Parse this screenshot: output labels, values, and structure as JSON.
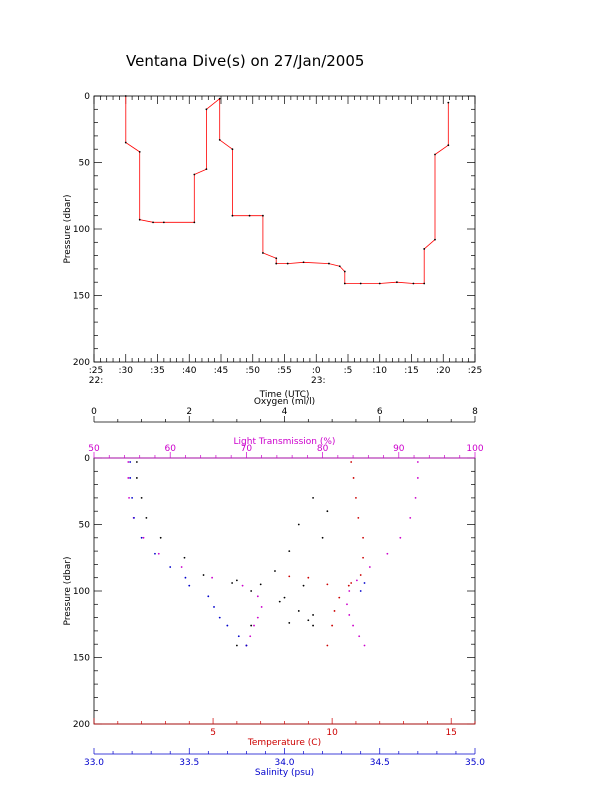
{
  "title": "Ventana Dive(s) on 27/Jan/2005",
  "chart_data": [
    {
      "type": "line",
      "xlabel": "Time (UTC)",
      "ylabel": "Pressure (dbar)",
      "x_range_minutes": [
        25,
        85
      ],
      "ylim": [
        200,
        0
      ],
      "x_ticks": [
        {
          "min": 25,
          "label": ":25",
          "hour": "22:"
        },
        {
          "min": 30,
          "label": ":30"
        },
        {
          "min": 35,
          "label": ":35"
        },
        {
          "min": 40,
          "label": ":40"
        },
        {
          "min": 45,
          "label": ":45"
        },
        {
          "min": 50,
          "label": ":50"
        },
        {
          "min": 55,
          "label": ":55"
        },
        {
          "min": 60,
          "label": ":0",
          "hour": "23:"
        },
        {
          "min": 65,
          "label": ":5"
        },
        {
          "min": 70,
          "label": ":10"
        },
        {
          "min": 75,
          "label": ":15"
        },
        {
          "min": 80,
          "label": ":20"
        },
        {
          "min": 85,
          "label": ":25"
        }
      ],
      "y_ticks": [
        0,
        50,
        100,
        150,
        200
      ],
      "series": [
        {
          "color": "#ff0000",
          "points": [
            [
              30.0,
              0
            ],
            [
              30.0,
              35
            ],
            [
              32.2,
              42
            ],
            [
              32.2,
              93
            ],
            [
              34.3,
              95
            ],
            [
              36.0,
              95
            ],
            [
              40.8,
              95
            ],
            [
              40.8,
              59
            ],
            [
              42.7,
              55
            ],
            [
              42.7,
              10
            ],
            [
              44.8,
              2
            ],
            [
              44.8,
              33
            ],
            [
              46.8,
              40
            ],
            [
              46.8,
              90
            ],
            [
              49.5,
              90
            ],
            [
              51.6,
              90
            ],
            [
              51.6,
              118
            ],
            [
              53.7,
              122
            ],
            [
              53.7,
              126
            ],
            [
              55.5,
              126
            ],
            [
              58.0,
              125
            ],
            [
              62.0,
              126
            ],
            [
              63.7,
              128
            ],
            [
              64.5,
              132
            ],
            [
              64.5,
              141
            ],
            [
              67.0,
              141
            ],
            [
              70.0,
              141
            ],
            [
              72.7,
              140
            ],
            [
              75.3,
              141
            ],
            [
              77.0,
              141
            ],
            [
              77.0,
              115
            ],
            [
              78.7,
              108
            ],
            [
              78.7,
              44
            ],
            [
              80.8,
              37
            ],
            [
              80.8,
              5
            ]
          ]
        }
      ]
    },
    {
      "type": "scatter",
      "ylabel": "Pressure (dbar)",
      "ylim": [
        200,
        0
      ],
      "y_ticks": [
        0,
        50,
        100,
        150,
        200
      ],
      "axes": {
        "oxygen": {
          "label": "Oxygen (ml/l)",
          "range": [
            0,
            8
          ],
          "ticks": [
            0,
            2,
            4,
            6,
            8
          ],
          "color": "#000000"
        },
        "light_transmission": {
          "label": "Light Transmission (%)",
          "range": [
            50,
            100
          ],
          "ticks": [
            50,
            60,
            70,
            80,
            90,
            100
          ],
          "color": "#cc00cc"
        },
        "temperature": {
          "label": "Temperature (C)",
          "range": [
            0,
            16
          ],
          "ticks": [
            5,
            10,
            15
          ],
          "color": "#cc0000"
        },
        "salinity": {
          "label": "Salinity (psu)",
          "range": [
            33.0,
            35.0
          ],
          "ticks": [
            "33.0",
            "33.5",
            "34.0",
            "34.5",
            "35.0"
          ],
          "color": "#0000cc"
        }
      },
      "series": [
        {
          "name": "Oxygen",
          "axis": "oxygen",
          "color": "#000000",
          "points": [
            [
              0.9,
              3
            ],
            [
              0.9,
              15
            ],
            [
              1.0,
              30
            ],
            [
              1.1,
              45
            ],
            [
              1.4,
              60
            ],
            [
              1.9,
              75
            ],
            [
              2.3,
              88
            ],
            [
              2.9,
              94
            ],
            [
              3.3,
              100
            ],
            [
              3.9,
              108
            ],
            [
              4.3,
              115
            ],
            [
              4.6,
              118
            ],
            [
              4.5,
              122
            ],
            [
              4.6,
              126
            ],
            [
              4.1,
              124
            ],
            [
              3.3,
              126
            ],
            [
              3.0,
              141
            ],
            [
              3.2,
              141
            ],
            [
              4.8,
              60
            ],
            [
              4.9,
              40
            ],
            [
              4.6,
              30
            ],
            [
              4.3,
              50
            ],
            [
              4.1,
              70
            ],
            [
              3.8,
              85
            ],
            [
              3.5,
              95
            ],
            [
              3.0,
              92
            ],
            [
              4.4,
              96
            ],
            [
              4.0,
              105
            ]
          ]
        },
        {
          "name": "Light Transmission",
          "axis": "light_transmission",
          "color": "#cc00cc",
          "points": [
            [
              54.5,
              3
            ],
            [
              54.5,
              15
            ],
            [
              54.6,
              30
            ],
            [
              55.2,
              45
            ],
            [
              56.5,
              60
            ],
            [
              58.5,
              72
            ],
            [
              61.5,
              82
            ],
            [
              65.5,
              90
            ],
            [
              69.5,
              96
            ],
            [
              71.5,
              104
            ],
            [
              72.0,
              112
            ],
            [
              71.5,
              120
            ],
            [
              71.0,
              126
            ],
            [
              70.5,
              134
            ],
            [
              70.0,
              141
            ],
            [
              92.5,
              3
            ],
            [
              92.5,
              15
            ],
            [
              92.2,
              30
            ],
            [
              91.5,
              45
            ],
            [
              90.2,
              60
            ],
            [
              88.5,
              72
            ],
            [
              86.2,
              82
            ],
            [
              84.5,
              92
            ],
            [
              83.5,
              100
            ],
            [
              83.2,
              110
            ],
            [
              83.5,
              118
            ],
            [
              84.0,
              126
            ],
            [
              84.8,
              134
            ],
            [
              85.5,
              141
            ]
          ]
        },
        {
          "name": "Temperature",
          "axis": "temperature",
          "color": "#cc0000",
          "points": [
            [
              10.8,
              3
            ],
            [
              10.9,
              15
            ],
            [
              11.0,
              30
            ],
            [
              11.1,
              45
            ],
            [
              11.3,
              60
            ],
            [
              11.3,
              75
            ],
            [
              11.2,
              88
            ],
            [
              10.8,
              94
            ],
            [
              10.7,
              96
            ],
            [
              10.3,
              105
            ],
            [
              10.1,
              115
            ],
            [
              10.0,
              126
            ],
            [
              9.8,
              141
            ],
            [
              8.2,
              89
            ],
            [
              9.0,
              90
            ],
            [
              9.8,
              95
            ]
          ]
        },
        {
          "name": "Salinity",
          "axis": "salinity",
          "color": "#0000cc",
          "points": [
            [
              33.19,
              3
            ],
            [
              33.19,
              15
            ],
            [
              33.2,
              30
            ],
            [
              33.21,
              45
            ],
            [
              33.25,
              60
            ],
            [
              33.32,
              72
            ],
            [
              33.4,
              82
            ],
            [
              33.48,
              90
            ],
            [
              33.5,
              96
            ],
            [
              33.6,
              104
            ],
            [
              33.63,
              112
            ],
            [
              33.66,
              120
            ],
            [
              33.7,
              126
            ],
            [
              33.76,
              134
            ],
            [
              33.8,
              141
            ],
            [
              34.42,
              94
            ],
            [
              34.4,
              100
            ]
          ]
        }
      ]
    }
  ]
}
